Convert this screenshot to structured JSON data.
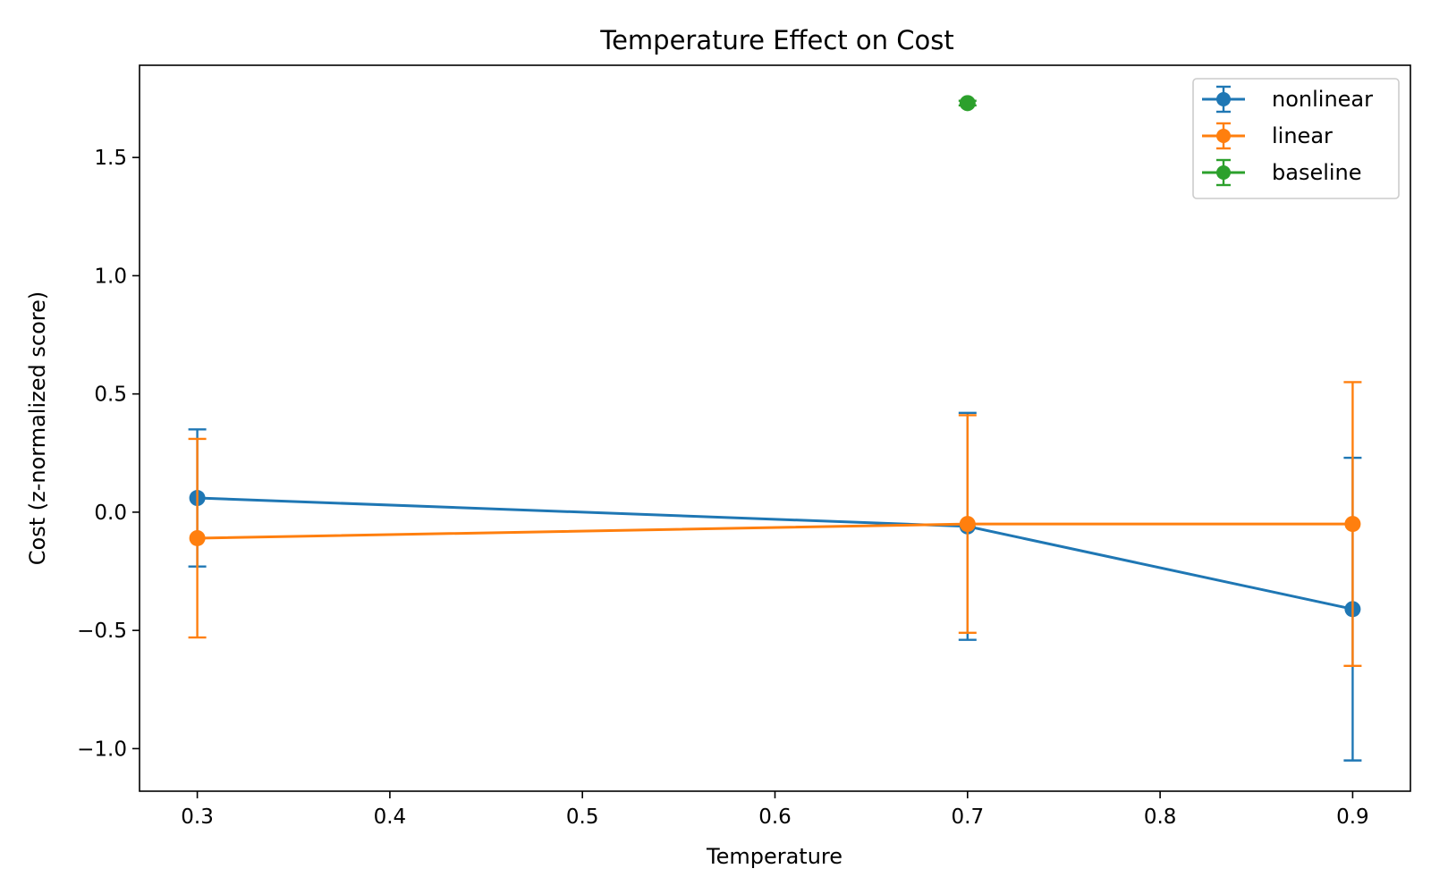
{
  "chart_data": {
    "type": "line",
    "title": "Temperature Effect on Cost",
    "xlabel": "Temperature",
    "ylabel": "Cost (z-normalized score)",
    "xlim": [
      0.27,
      0.93
    ],
    "ylim": [
      -1.18,
      1.89
    ],
    "xticks": [
      0.3,
      0.4,
      0.5,
      0.6,
      0.7,
      0.8,
      0.9
    ],
    "xtick_labels": [
      "0.3",
      "0.4",
      "0.5",
      "0.6",
      "0.7",
      "0.8",
      "0.9"
    ],
    "yticks": [
      -1.0,
      -0.5,
      0.0,
      0.5,
      1.0,
      1.5
    ],
    "ytick_labels": [
      "−1.0",
      "−0.5",
      "0.0",
      "0.5",
      "1.0",
      "1.5"
    ],
    "grid": false,
    "legend_position": "top-right",
    "error_bars": true,
    "series": [
      {
        "name": "nonlinear",
        "color": "#1f77b4",
        "x": [
          0.3,
          0.7,
          0.9
        ],
        "y": [
          0.06,
          -0.06,
          -0.41
        ],
        "yerr": [
          0.29,
          0.48,
          0.64
        ]
      },
      {
        "name": "linear",
        "color": "#ff7f0e",
        "x": [
          0.3,
          0.7,
          0.9
        ],
        "y": [
          -0.11,
          -0.05,
          -0.05
        ],
        "yerr": [
          0.42,
          0.46,
          0.6
        ]
      },
      {
        "name": "baseline",
        "color": "#2ca02c",
        "x": [
          0.7
        ],
        "y": [
          1.73
        ],
        "yerr": [
          0.01
        ]
      }
    ]
  }
}
